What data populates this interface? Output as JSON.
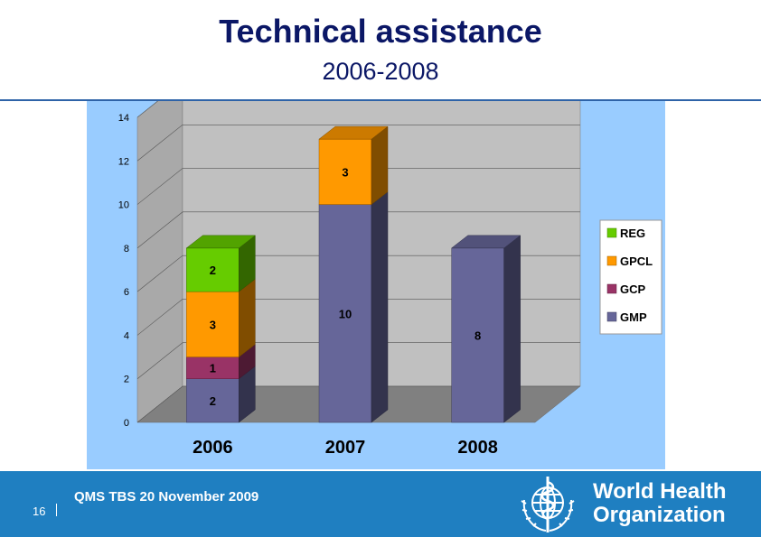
{
  "slide": {
    "title": "Technical assistance",
    "subtitle": "2006-2008",
    "page_number": "16",
    "footer_text": "QMS TBS 20 November 2009",
    "org_name_line1": "World Health",
    "org_name_line2": "Organization"
  },
  "colors": {
    "title": "#0b1766",
    "footer_band": "#1f7fc1",
    "chart_background": "#99ccff",
    "plot_wall": "#c0c0c0",
    "floor": "#808080"
  },
  "chart_data": {
    "type": "bar",
    "stacked": true,
    "three_d": true,
    "categories": [
      "2006",
      "2007",
      "2008"
    ],
    "series": [
      {
        "name": "GMP",
        "values": [
          2,
          10,
          8
        ],
        "color": "#666699"
      },
      {
        "name": "GCP",
        "values": [
          1,
          0,
          0
        ],
        "color": "#993366"
      },
      {
        "name": "GPCL",
        "values": [
          3,
          3,
          0
        ],
        "color": "#ff9900"
      },
      {
        "name": "REG",
        "values": [
          2,
          0,
          0
        ],
        "color": "#66cc00"
      }
    ],
    "ylim": [
      0,
      14
    ],
    "yticks": [
      "0",
      "2",
      "4",
      "6",
      "8",
      "10",
      "12",
      "14"
    ],
    "grid": true,
    "legend_position": "right",
    "legend_order": [
      "REG",
      "GPCL",
      "GCP",
      "GMP"
    ]
  }
}
